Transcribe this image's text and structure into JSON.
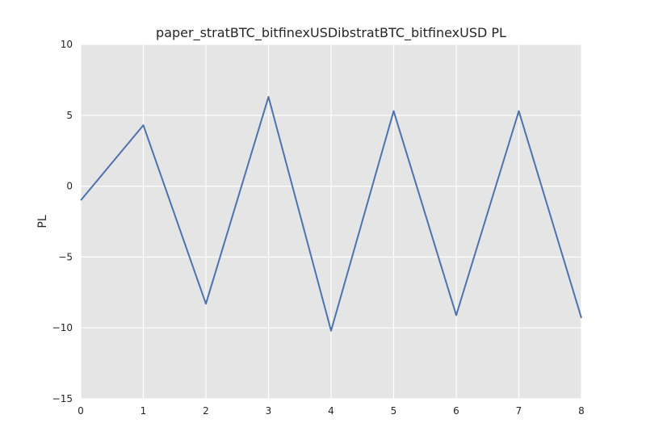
{
  "chart_data": {
    "type": "line",
    "title": "paper_stratBTC_bitfinexUSDibstratBTC_bitfinexUSD PL",
    "xlabel": "",
    "ylabel": "PL",
    "xlim": [
      0,
      8
    ],
    "ylim": [
      -15,
      10
    ],
    "xticks": [
      0,
      1,
      2,
      3,
      4,
      5,
      6,
      7,
      8
    ],
    "yticks": [
      -15,
      -10,
      -5,
      0,
      5,
      10
    ],
    "xtick_labels": [
      "0",
      "1",
      "2",
      "3",
      "4",
      "5",
      "6",
      "7",
      "8"
    ],
    "ytick_labels": [
      "−15",
      "−10",
      "−5",
      "0",
      "5",
      "10"
    ],
    "grid": true,
    "legend": "none",
    "background_color": "#e5e5e5",
    "grid_color": "#ffffff",
    "series": [
      {
        "color": "#4c72b0",
        "x": [
          0,
          1,
          2,
          3,
          4,
          5,
          6,
          7,
          8
        ],
        "y": [
          -1.0,
          4.3,
          -8.3,
          6.3,
          -10.2,
          5.3,
          -9.1,
          5.3,
          -9.3
        ]
      }
    ]
  }
}
